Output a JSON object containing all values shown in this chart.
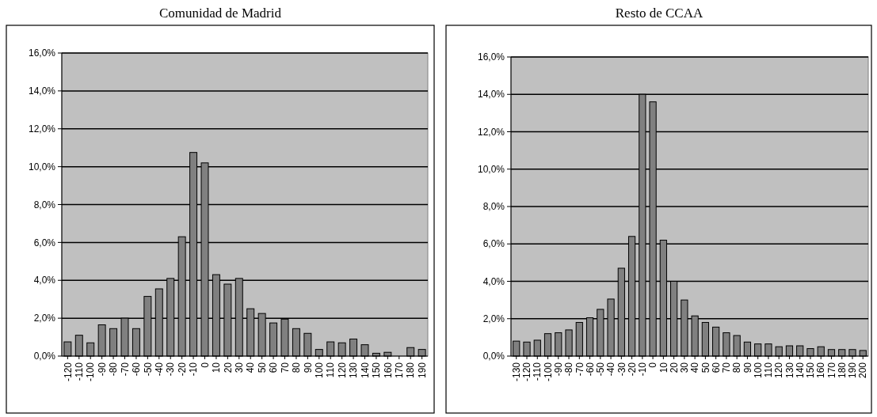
{
  "chart_data": [
    {
      "type": "bar",
      "title": "Comunidad de Madrid",
      "categories": [
        "-120",
        "-110",
        "-100",
        "-90",
        "-80",
        "-70",
        "-60",
        "-50",
        "-40",
        "-30",
        "-20",
        "-10",
        "0",
        "10",
        "20",
        "30",
        "40",
        "50",
        "60",
        "70",
        "80",
        "90",
        "100",
        "110",
        "120",
        "130",
        "140",
        "150",
        "160",
        "170",
        "180",
        "190"
      ],
      "series": [
        {
          "color": "#808080",
          "values": [
            0.75,
            1.1,
            0.7,
            1.65,
            1.45,
            2.0,
            1.45,
            3.15,
            3.55,
            4.1,
            6.3,
            10.75,
            10.2,
            4.3,
            3.8,
            4.1,
            2.5,
            2.25,
            1.75,
            1.95,
            1.45,
            1.2,
            0.35,
            0.75,
            0.7,
            0.9,
            0.6,
            0.15,
            0.2,
            null,
            0.45,
            0.35
          ]
        }
      ],
      "ylim": [
        0,
        16
      ],
      "yticks": [
        {
          "value": 0,
          "label": "0,0%"
        },
        {
          "value": 2,
          "label": "2,0%"
        },
        {
          "value": 4,
          "label": "4,0%"
        },
        {
          "value": 6,
          "label": "6,0%"
        },
        {
          "value": 8,
          "label": "8,0%"
        },
        {
          "value": 10,
          "label": "10,0%"
        },
        {
          "value": 12,
          "label": "12,0%"
        },
        {
          "value": 14,
          "label": "14,0%"
        },
        {
          "value": 16,
          "label": "16,0%"
        }
      ],
      "grid": "y"
    },
    {
      "type": "bar",
      "title": "Resto de CCAA",
      "categories": [
        "-130",
        "-120",
        "-110",
        "-100",
        "-90",
        "-80",
        "-70",
        "-60",
        "-50",
        "-40",
        "-30",
        "-20",
        "-10",
        "0",
        "10",
        "20",
        "30",
        "40",
        "50",
        "60",
        "70",
        "80",
        "90",
        "100",
        "110",
        "120",
        "130",
        "140",
        "150",
        "160",
        "170",
        "180",
        "190",
        "200"
      ],
      "series": [
        {
          "color": "#808080",
          "values": [
            0.8,
            0.75,
            0.85,
            1.2,
            1.25,
            1.4,
            1.8,
            2.05,
            2.5,
            3.05,
            4.7,
            6.4,
            14.0,
            13.6,
            6.2,
            4.0,
            3.0,
            2.15,
            1.8,
            1.55,
            1.25,
            1.1,
            0.75,
            0.65,
            0.65,
            0.5,
            0.55,
            0.55,
            0.4,
            0.5,
            0.35,
            0.35,
            0.35,
            0.3
          ]
        }
      ],
      "ylim": [
        0,
        16
      ],
      "yticks": [
        {
          "value": 0,
          "label": "0,0%"
        },
        {
          "value": 2,
          "label": "2,0%"
        },
        {
          "value": 4,
          "label": "4,0%"
        },
        {
          "value": 6,
          "label": "6,0%"
        },
        {
          "value": 8,
          "label": "8,0%"
        },
        {
          "value": 10,
          "label": "10,0%"
        },
        {
          "value": 12,
          "label": "12,0%"
        },
        {
          "value": 14,
          "label": "14,0%"
        },
        {
          "value": 16,
          "label": "16,0%"
        }
      ],
      "grid": "y"
    }
  ]
}
